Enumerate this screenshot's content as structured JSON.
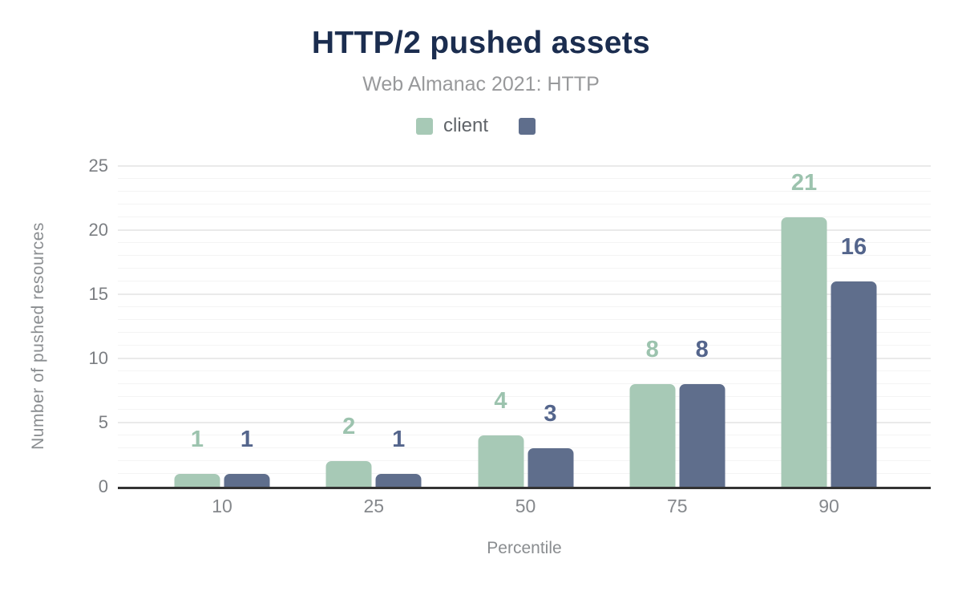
{
  "chart_data": {
    "type": "bar",
    "title": "HTTP/2 pushed assets",
    "subtitle": "Web Almanac 2021: HTTP",
    "xlabel": "Percentile",
    "ylabel": "Number of pushed resources",
    "categories": [
      "10",
      "25",
      "50",
      "75",
      "90"
    ],
    "series": [
      {
        "name": "client",
        "color": "#a7c9b6",
        "label_color": "#9cc3ae",
        "values": [
          1,
          2,
          4,
          8,
          21
        ]
      },
      {
        "name": "",
        "color": "#5f6e8c",
        "label_color": "#54658c",
        "values": [
          1,
          1,
          3,
          8,
          16
        ]
      }
    ],
    "ylim": [
      0,
      25
    ],
    "yticks": [
      0,
      5,
      10,
      15,
      20,
      25
    ],
    "grid": "horizontal; major every 5, faint minor every 1; dark baseline at 0",
    "legend_position": "top center"
  }
}
